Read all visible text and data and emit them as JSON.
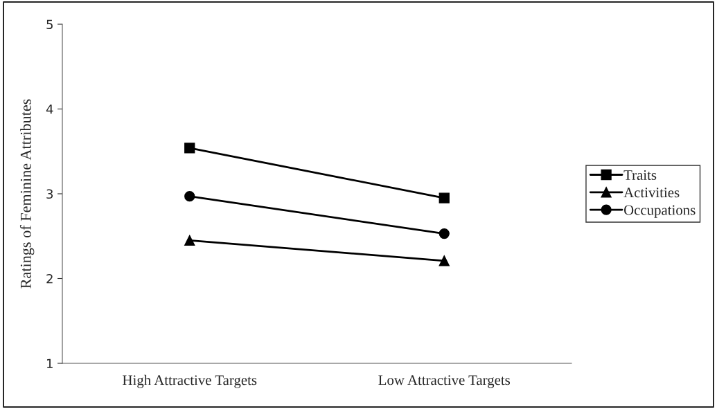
{
  "chart_data": {
    "type": "line",
    "ylabel": "Ratings of Feminine Attributes",
    "categories": [
      "High Attractive Targets",
      "Low Attractive Targets"
    ],
    "series": [
      {
        "name": "Traits",
        "color": "#000000",
        "marker": "square",
        "values": [
          3.54,
          2.95
        ]
      },
      {
        "name": "Activities",
        "color": "#000000",
        "marker": "triangle",
        "values": [
          2.45,
          2.21
        ]
      },
      {
        "name": "Occupations",
        "color": "#000000",
        "marker": "circle",
        "values": [
          2.97,
          2.53
        ]
      }
    ],
    "ylim": [
      1,
      5
    ],
    "yticks": [
      1,
      2,
      3,
      4,
      5
    ],
    "grid": false,
    "legend": "right",
    "line_style": "solid"
  }
}
